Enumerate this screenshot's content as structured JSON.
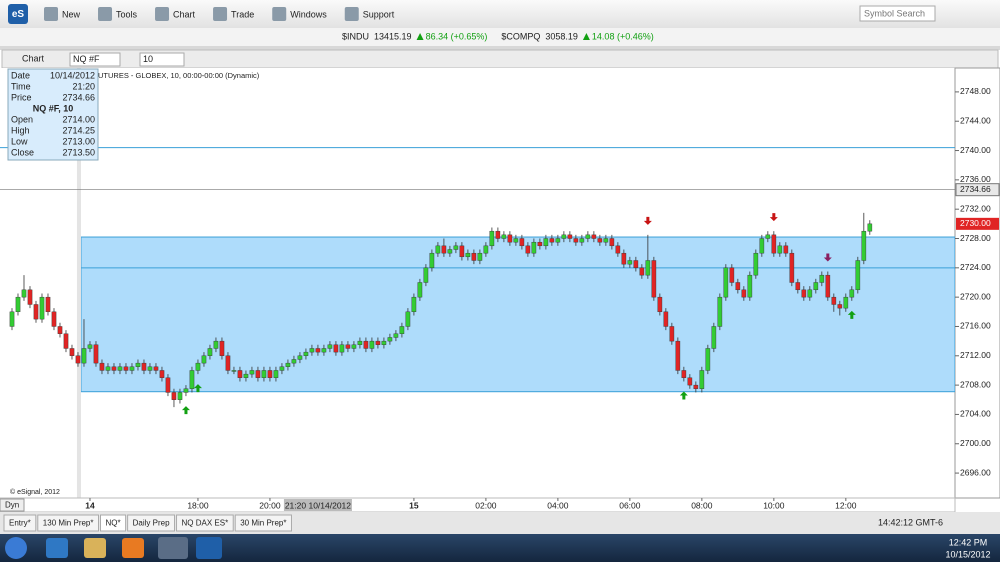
{
  "toolbar": {
    "buttons": [
      "New",
      "Tools",
      "Chart",
      "Trade",
      "Windows",
      "Support"
    ],
    "search": "Symbol Search"
  },
  "ticker": [
    {
      "symbol": "$INDU",
      "price": "13415.19",
      "change": "86.34 (+0.65%)"
    },
    {
      "symbol": "$COMPQ",
      "price": "3058.19",
      "change": "14.08 (+0.46%)"
    }
  ],
  "window": {
    "title": "Chart",
    "symbol": "NQ #F",
    "interval": "10"
  },
  "chart_data": {
    "type": "candlestick",
    "title": "UTURES - GLOBEX, 10, 00:00-00:00 (Dynamic)",
    "copyright": "© eSignal, 2012",
    "mode": "Dyn",
    "info": {
      "rows": [
        [
          "Date",
          "10/14/2012"
        ],
        [
          "Time",
          "21:20"
        ],
        [
          "Price",
          "2734.66"
        ]
      ],
      "heading": "NQ #F, 10",
      "ohlc": [
        [
          "Open",
          "2714.00"
        ],
        [
          "High",
          "2714.25"
        ],
        [
          "Low",
          "2713.00"
        ],
        [
          "Close",
          "2713.50"
        ]
      ]
    },
    "open": [
      2716,
      2718,
      2720,
      2721,
      2719,
      2717,
      2720,
      2718,
      2716,
      2715,
      2713,
      2712,
      2711,
      2713,
      2713.5,
      2711,
      2710,
      2710.5,
      2710,
      2710.5,
      2710,
      2710.5,
      2711,
      2710,
      2710.5,
      2710,
      2709,
      2707,
      2706,
      2707,
      2707.5,
      2710,
      2711,
      2712,
      2713,
      2714,
      2712,
      2710,
      2710,
      2709,
      2709.5,
      2710,
      2709,
      2710,
      2709,
      2710,
      2710.5,
      2711,
      2711.5,
      2712,
      2712.5,
      2713,
      2712.5,
      2713,
      2713.5,
      2712.5,
      2713.5,
      2713,
      2713.5,
      2714,
      2713,
      2714,
      2713.5,
      2714,
      2714.5,
      2715,
      2716,
      2718,
      2720,
      2722,
      2724,
      2726,
      2727,
      2726,
      2726.5,
      2727,
      2725.5,
      2726,
      2725,
      2726,
      2727,
      2729,
      2728,
      2728.5,
      2727.5,
      2728,
      2727,
      2726,
      2727.5,
      2727,
      2728,
      2727.5,
      2728,
      2728.5,
      2728,
      2727.5,
      2728,
      2728.5,
      2728,
      2727.5,
      2728,
      2727,
      2726,
      2724.5,
      2725,
      2724,
      2723,
      2725,
      2720,
      2718,
      2716,
      2714,
      2710,
      2709,
      2708,
      2707.5,
      2710,
      2713,
      2716,
      2720,
      2724,
      2722,
      2721,
      2720,
      2723,
      2726,
      2728,
      2728.5,
      2726,
      2727,
      2726,
      2722,
      2721,
      2720,
      2721,
      2722,
      2723,
      2720,
      2719,
      2718.5,
      2720,
      2721,
      2725,
      2729
    ],
    "high": [
      2718.5,
      2720.5,
      2723,
      2721.5,
      2719.5,
      2720.5,
      2720.5,
      2718.5,
      2716.5,
      2715.5,
      2713.5,
      2712.5,
      2717,
      2714,
      2714,
      2711.5,
      2711,
      2711,
      2711,
      2711,
      2711,
      2711.5,
      2711.5,
      2711,
      2711,
      2710.5,
      2709.5,
      2707.5,
      2707.5,
      2708,
      2710.5,
      2711.5,
      2712.5,
      2713.5,
      2714.5,
      2714.5,
      2712.5,
      2710.5,
      2710.5,
      2710,
      2710.5,
      2710.5,
      2710.5,
      2710.5,
      2710.5,
      2711,
      2711.5,
      2712,
      2712.5,
      2713,
      2713.5,
      2713.5,
      2713.5,
      2714,
      2714,
      2714,
      2714,
      2714,
      2714.5,
      2714.5,
      2714.5,
      2714.5,
      2714.5,
      2715,
      2715.5,
      2716.5,
      2718.5,
      2720.5,
      2722.5,
      2724.5,
      2726.5,
      2727.5,
      2728,
      2727,
      2727.5,
      2727.5,
      2726.5,
      2726.5,
      2726.5,
      2727.5,
      2729.5,
      2729.5,
      2729,
      2729,
      2728.5,
      2728.5,
      2727.5,
      2728,
      2728,
      2728.5,
      2728.5,
      2728.5,
      2729,
      2729,
      2728.5,
      2728.5,
      2729,
      2729,
      2728.5,
      2728.5,
      2728.5,
      2727.5,
      2726.5,
      2725.5,
      2725.5,
      2724.5,
      2728.5,
      2725.5,
      2720.5,
      2718.5,
      2716.5,
      2714.5,
      2710.5,
      2709.5,
      2708.5,
      2710.5,
      2713.5,
      2716.5,
      2720.5,
      2724.5,
      2724.5,
      2722.5,
      2721.5,
      2723.5,
      2726.5,
      2728.5,
      2729,
      2729,
      2727.5,
      2727.5,
      2726.5,
      2722.5,
      2721.5,
      2721.5,
      2722.5,
      2723.5,
      2723.5,
      2720.5,
      2719.5,
      2720.5,
      2721.5,
      2725.5,
      2731.5,
      2730.5
    ],
    "low": [
      2715.5,
      2717.5,
      2719.5,
      2718.5,
      2716.5,
      2716.5,
      2717.5,
      2715.5,
      2714.5,
      2712.5,
      2711.5,
      2710.5,
      2710.5,
      2712.5,
      2710.5,
      2709.5,
      2709.5,
      2709.5,
      2709.5,
      2709.5,
      2709.5,
      2710,
      2709.5,
      2709.5,
      2709.5,
      2708.5,
      2706.5,
      2705,
      2705.5,
      2706.5,
      2707,
      2709.5,
      2710.5,
      2711.5,
      2712.5,
      2711.5,
      2709.5,
      2709.5,
      2708.5,
      2708.5,
      2709,
      2708.5,
      2708.5,
      2708.5,
      2708.5,
      2709.5,
      2710,
      2710.5,
      2711,
      2711.5,
      2712,
      2712,
      2712,
      2712.5,
      2712,
      2712,
      2712.5,
      2712.5,
      2713,
      2712.5,
      2712.5,
      2713,
      2713,
      2713.5,
      2714,
      2714.5,
      2715.5,
      2717.5,
      2719.5,
      2721.5,
      2723.5,
      2725.5,
      2725.5,
      2725.5,
      2726,
      2725,
      2725,
      2724.5,
      2724.5,
      2725.5,
      2726.5,
      2727.5,
      2727.5,
      2727,
      2727,
      2726.5,
      2725.5,
      2725.5,
      2726.5,
      2726.5,
      2727,
      2727,
      2727.5,
      2727.5,
      2727,
      2727,
      2727.5,
      2727.5,
      2727,
      2727,
      2726.5,
      2725.5,
      2724,
      2724,
      2723.5,
      2722.5,
      2722.5,
      2719.5,
      2717.5,
      2715.5,
      2713.5,
      2709.5,
      2708.5,
      2707.5,
      2707,
      2707,
      2709.5,
      2712.5,
      2715.5,
      2719.5,
      2721.5,
      2720.5,
      2719.5,
      2719.5,
      2722.5,
      2725.5,
      2727.5,
      2725.5,
      2725.5,
      2725.5,
      2721.5,
      2720.5,
      2719.5,
      2719.5,
      2720.5,
      2721.5,
      2719.5,
      2718,
      2717.5,
      2718,
      2719.5,
      2720.5,
      2724.5,
      2728.5
    ],
    "close": [
      2718,
      2720,
      2721,
      2719,
      2717,
      2720,
      2718,
      2716,
      2715,
      2713,
      2712,
      2711,
      2713,
      2713.5,
      2711,
      2710,
      2710.5,
      2710,
      2710.5,
      2710,
      2710.5,
      2711,
      2710,
      2710.5,
      2710,
      2709,
      2707,
      2706,
      2707,
      2707.5,
      2710,
      2711,
      2712,
      2713,
      2714,
      2712,
      2710,
      2710,
      2709,
      2709.5,
      2710,
      2709,
      2710,
      2709,
      2710,
      2710.5,
      2711,
      2711.5,
      2712,
      2712.5,
      2713,
      2712.5,
      2713,
      2713.5,
      2712.5,
      2713.5,
      2713,
      2713.5,
      2714,
      2713,
      2714,
      2713.5,
      2714,
      2714.5,
      2715,
      2716,
      2718,
      2720,
      2722,
      2724,
      2726,
      2727,
      2726,
      2726.5,
      2727,
      2725.5,
      2726,
      2725,
      2726,
      2727,
      2729,
      2728,
      2728.5,
      2727.5,
      2728,
      2727,
      2726,
      2727.5,
      2727,
      2728,
      2727.5,
      2728,
      2728.5,
      2728,
      2727.5,
      2728,
      2728.5,
      2728,
      2727.5,
      2728,
      2727,
      2726,
      2724.5,
      2725,
      2724,
      2723,
      2725,
      2720,
      2718,
      2716,
      2714,
      2710,
      2709,
      2708,
      2707.5,
      2710,
      2713,
      2716,
      2720,
      2724,
      2722,
      2721,
      2720,
      2723,
      2726,
      2728,
      2728.5,
      2726,
      2727,
      2726,
      2722,
      2721,
      2720,
      2721,
      2722,
      2723,
      2720,
      2719,
      2718.5,
      2720,
      2721,
      2725,
      2729,
      2730
    ],
    "up_color": "#33cc33",
    "down_color": "#e02424",
    "xlim": [
      -2,
      157.2
    ],
    "xticks": [
      {
        "value": 13,
        "label": "14"
      },
      {
        "value": 31,
        "label": "18:00"
      },
      {
        "value": 43,
        "label": "20:00"
      },
      {
        "value": 67,
        "label": "15"
      },
      {
        "value": 79,
        "label": "02:00"
      },
      {
        "value": 91,
        "label": "04:00"
      },
      {
        "value": 103,
        "label": "06:00"
      },
      {
        "value": 115,
        "label": "08:00"
      },
      {
        "value": 127,
        "label": "10:00"
      },
      {
        "value": 139,
        "label": "12:00"
      }
    ],
    "crosshair": {
      "x": {
        "value": 51,
        "label": "21:20 10/14/2012"
      },
      "y": 2734.66
    },
    "ylim": [
      2692.6,
      2751.26
    ],
    "yticks": [
      {
        "value": 2696,
        "label": "2696.00"
      },
      {
        "value": 2700,
        "label": "2700.00"
      },
      {
        "value": 2704,
        "label": "2704.00"
      },
      {
        "value": 2708,
        "label": "2708.00"
      },
      {
        "value": 2712,
        "label": "2712.00"
      },
      {
        "value": 2716,
        "label": "2716.00"
      },
      {
        "value": 2720,
        "label": "2720.00"
      },
      {
        "value": 2724,
        "label": "2724.00"
      },
      {
        "value": 2728,
        "label": "2728.00"
      },
      {
        "value": 2732,
        "label": "2732.00"
      },
      {
        "value": 2736,
        "label": "2736.00"
      },
      {
        "value": 2740,
        "label": "2740.00"
      },
      {
        "value": 2744,
        "label": "2744.00"
      },
      {
        "value": 2748,
        "label": "2748.00"
      }
    ],
    "last_price": {
      "value": 2730,
      "label": "2730.00"
    },
    "hline": 2740.4,
    "box": {
      "start": 12,
      "top": 2728.2,
      "mid": 2724,
      "bottom": 2707.1
    },
    "signals": [
      {
        "bar": 29,
        "dir": "up",
        "color": "#12a012"
      },
      {
        "bar": 31,
        "dir": "up",
        "color": "#12a012"
      },
      {
        "bar": 106,
        "dir": "down",
        "color": "#c81414"
      },
      {
        "bar": 112,
        "dir": "up",
        "color": "#12a012"
      },
      {
        "bar": 127,
        "dir": "down",
        "color": "#c81414"
      },
      {
        "bar": 136,
        "dir": "down",
        "color": "#8a2060"
      },
      {
        "bar": 140,
        "dir": "up",
        "color": "#12a012"
      }
    ]
  },
  "tabs": [
    "Entry*",
    "130 Min Prep*",
    "NQ*",
    "Daily Prep",
    "NQ DAX ES*",
    "30 Min Prep*"
  ],
  "status": {
    "clock": "14:42:12 GMT-6"
  },
  "taskbar": {
    "time": "12:42 PM",
    "date": "10/15/2012"
  }
}
